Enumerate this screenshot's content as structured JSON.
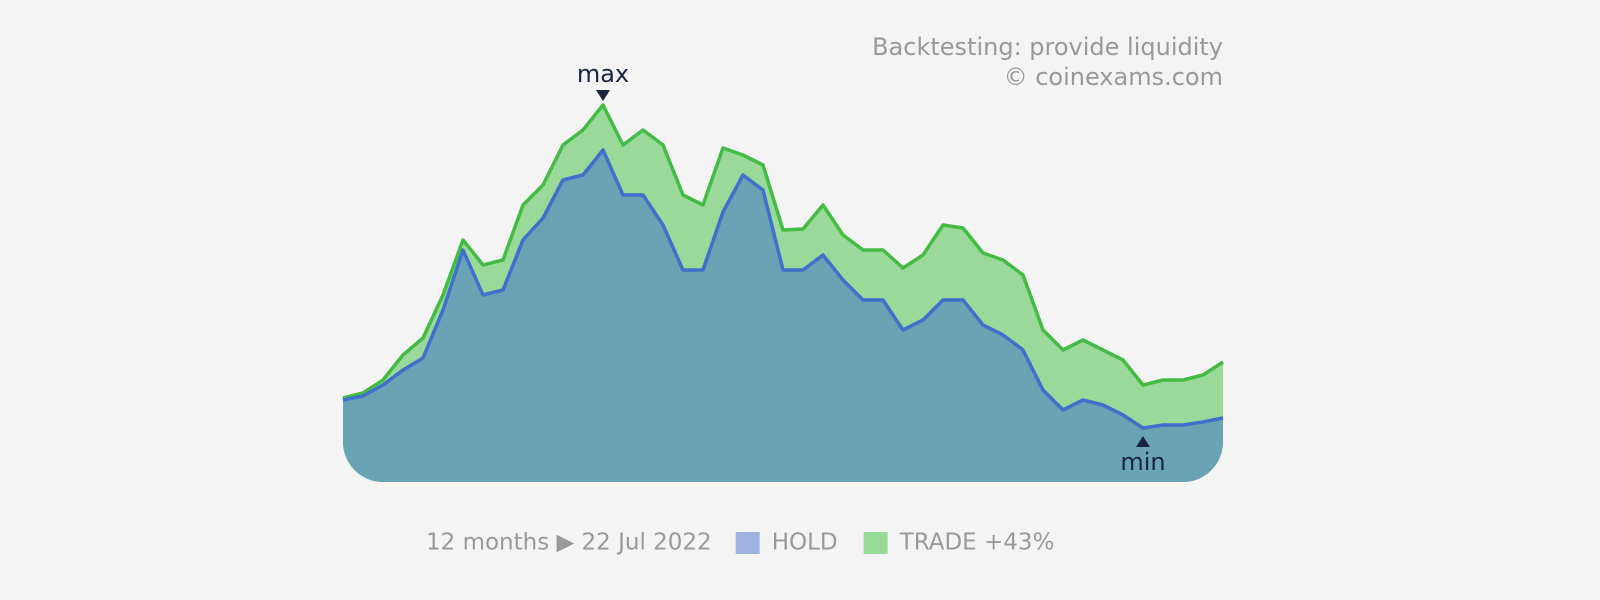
{
  "chart_data": {
    "type": "area",
    "title": "Backtesting: provide liquidity",
    "subtitle": "© coinexams.com",
    "period": "12 months ▶ 22 Jul 2022",
    "annotations": {
      "max": "max",
      "min": "min"
    },
    "ylim": [
      0,
      400
    ],
    "series": [
      {
        "name": "TRADE +43%",
        "color": "#44bb44",
        "fill": "#9ad99a",
        "legend_color": "#96db96",
        "values": [
          84,
          89,
          102,
          127,
          144,
          187,
          242,
          217,
          222,
          277,
          297,
          337,
          352,
          377,
          337,
          352,
          337,
          287,
          277,
          334,
          327,
          317,
          252,
          253,
          277,
          247,
          232,
          232,
          214,
          227,
          257,
          254,
          229,
          222,
          207,
          152,
          132,
          142,
          132,
          122,
          97,
          102,
          102,
          107,
          120
        ]
      },
      {
        "name": "HOLD",
        "color": "#4070cc",
        "fill": "#6aa3b4",
        "legend_color": "#9fb3e0",
        "values": [
          82,
          86,
          97,
          112,
          124,
          172,
          232,
          187,
          192,
          242,
          264,
          302,
          307,
          332,
          287,
          287,
          257,
          212,
          212,
          270,
          307,
          292,
          212,
          212,
          227,
          202,
          182,
          182,
          152,
          162,
          182,
          182,
          157,
          147,
          132,
          92,
          72,
          82,
          77,
          67,
          54,
          57,
          57,
          60,
          64
        ]
      }
    ]
  }
}
